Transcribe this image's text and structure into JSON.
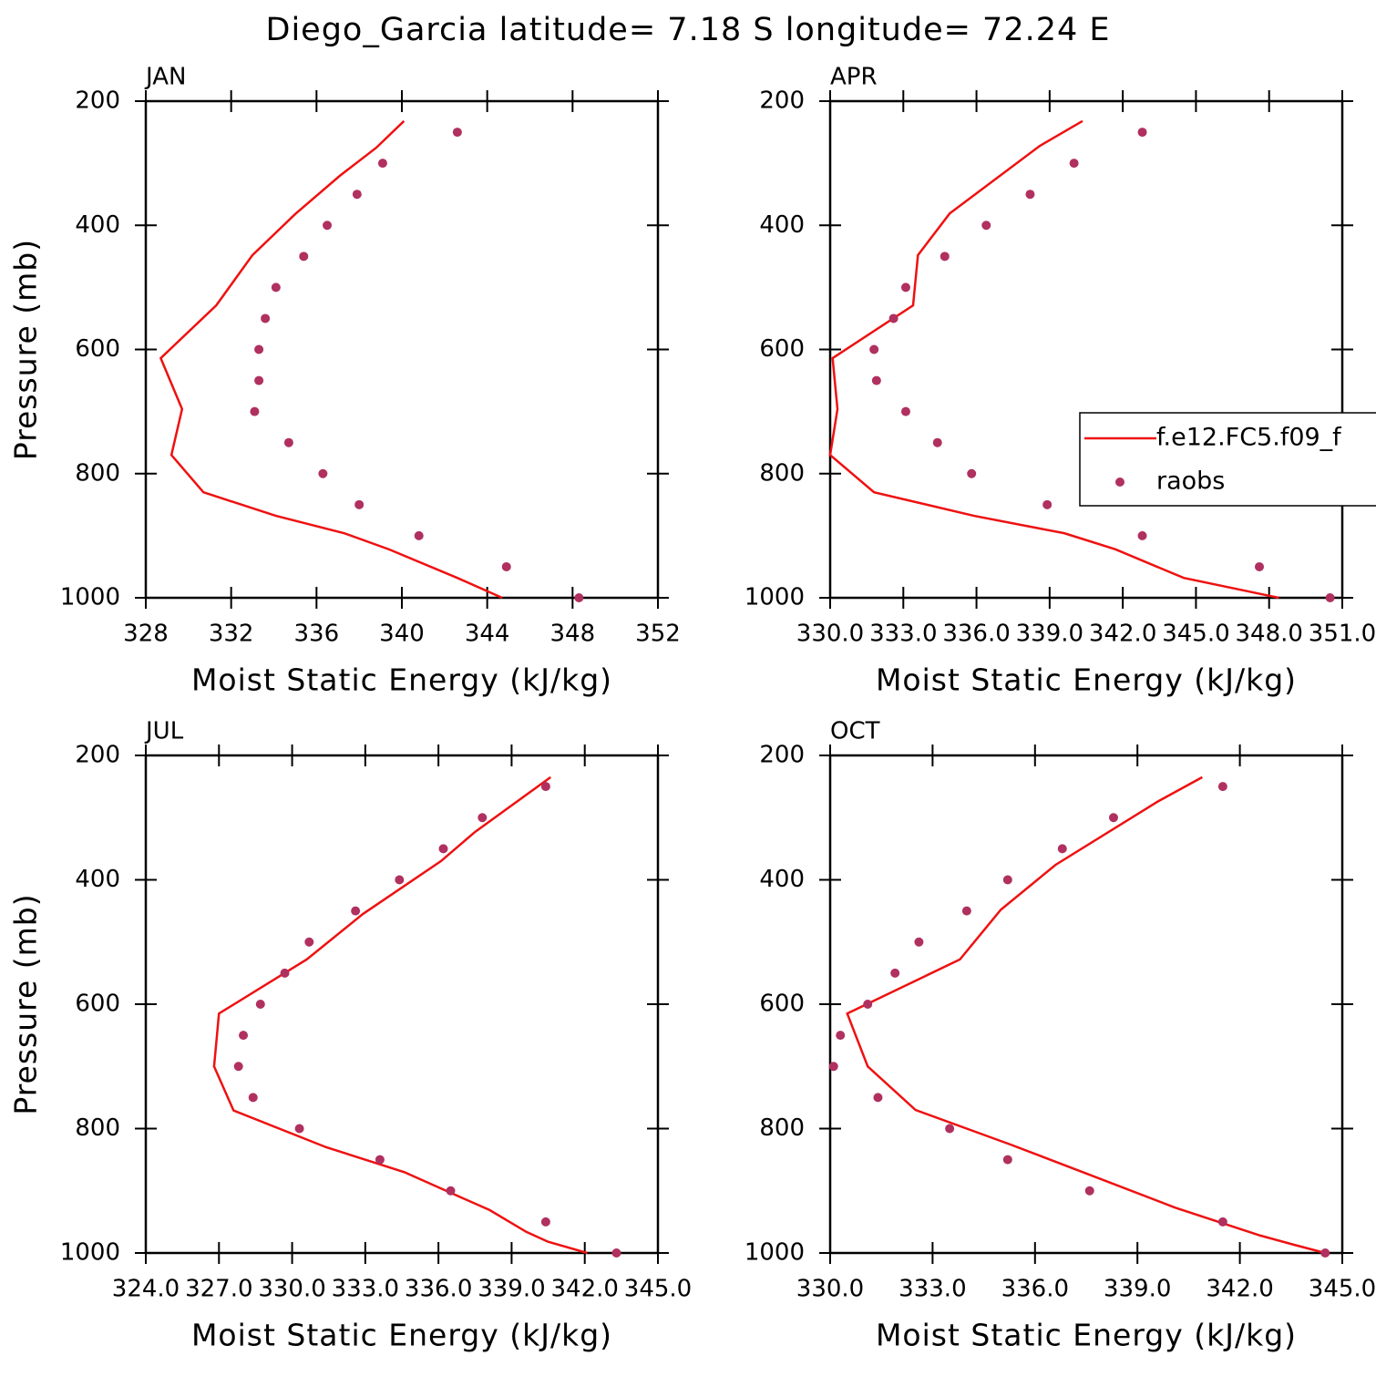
{
  "title": "Diego_Garcia  latitude= 7.18 S longitude= 72.24 E",
  "chart_data": [
    {
      "type": "line-scatter",
      "label": "JAN",
      "xlabel": "Moist Static Energy (kJ/kg)",
      "ylabel": "Pressure (mb)",
      "xlim": [
        328,
        352
      ],
      "xticks": [
        328,
        332,
        336,
        340,
        344,
        348,
        352
      ],
      "ylim": [
        1000,
        200
      ],
      "yticks": [
        200,
        400,
        600,
        800,
        1000
      ],
      "series": [
        {
          "kind": "line",
          "color": "#ee1111",
          "x": [
            340.1,
            338.8,
            337.1,
            335.0,
            333.0,
            331.3,
            328.7,
            329.7,
            329.2,
            330.7,
            334.1,
            337.3,
            339.4,
            342.6,
            344.7
          ],
          "y": [
            232,
            275,
            320,
            382,
            448,
            529,
            614,
            696,
            770,
            830,
            868,
            896,
            922,
            968,
            1000
          ]
        },
        {
          "kind": "scatter",
          "color": "#b03060",
          "x": [
            342.6,
            339.1,
            337.9,
            336.5,
            335.4,
            334.1,
            333.6,
            333.3,
            333.3,
            333.1,
            334.7,
            336.3,
            338.0,
            340.8,
            344.9,
            348.3
          ],
          "y": [
            250,
            300,
            350,
            400,
            450,
            500,
            550,
            600,
            650,
            700,
            750,
            800,
            850,
            900,
            950,
            1000
          ]
        }
      ]
    },
    {
      "type": "line-scatter",
      "label": "APR",
      "xlabel": "Moist Static Energy (kJ/kg)",
      "legend": "right",
      "xlim": [
        330,
        351
      ],
      "xticks": [
        {
          "value": 330,
          "label": "330.0"
        },
        {
          "value": 333,
          "label": "333.0"
        },
        {
          "value": 336,
          "label": "336.0"
        },
        {
          "value": 339,
          "label": "339.0"
        },
        {
          "value": 342,
          "label": "342.0"
        },
        {
          "value": 345,
          "label": "345.0"
        },
        {
          "value": 348,
          "label": "348.0"
        },
        {
          "value": 351,
          "label": "351.0"
        }
      ],
      "ylim": [
        1000,
        200
      ],
      "yticks": [
        200,
        400,
        600,
        800,
        1000
      ],
      "series": [
        {
          "kind": "line",
          "name": "f.e12.FC5.f09_f",
          "color": "#ee1111",
          "x": [
            340.35,
            338.6,
            334.9,
            333.6,
            333.4,
            330.1,
            330.3,
            330.0,
            331.8,
            335.9,
            339.6,
            341.7,
            344.5,
            348.4
          ],
          "y": [
            232,
            272,
            381,
            448,
            529,
            614,
            696,
            770,
            830,
            868,
            896,
            922,
            968,
            1000
          ]
        },
        {
          "kind": "scatter",
          "name": "raobs",
          "color": "#b03060",
          "x": [
            342.8,
            340.0,
            338.2,
            336.4,
            334.7,
            333.1,
            332.6,
            331.8,
            331.9,
            333.1,
            334.4,
            335.8,
            338.9,
            342.8,
            347.6,
            350.5
          ],
          "y": [
            250,
            300,
            350,
            400,
            450,
            500,
            550,
            600,
            650,
            700,
            750,
            800,
            850,
            900,
            950,
            1000
          ]
        }
      ]
    },
    {
      "type": "line-scatter",
      "label": "JUL",
      "xlabel": "Moist Static Energy (kJ/kg)",
      "ylabel": "Pressure (mb)",
      "xlim": [
        324,
        345
      ],
      "xticks": [
        {
          "value": 324,
          "label": "324.0"
        },
        {
          "value": 327,
          "label": "327.0"
        },
        {
          "value": 330,
          "label": "330.0"
        },
        {
          "value": 333,
          "label": "333.0"
        },
        {
          "value": 336,
          "label": "336.0"
        },
        {
          "value": 339,
          "label": "339.0"
        },
        {
          "value": 342,
          "label": "342.0"
        },
        {
          "value": 345,
          "label": "345.0"
        }
      ],
      "ylim": [
        1000,
        200
      ],
      "yticks": [
        200,
        400,
        600,
        800,
        1000
      ],
      "series": [
        {
          "kind": "line",
          "color": "#ee1111",
          "x": [
            340.6,
            337.5,
            336.1,
            332.9,
            330.6,
            327.0,
            326.8,
            327.6,
            331.4,
            334.6,
            336.6,
            338.1,
            339.6,
            340.5,
            342.1
          ],
          "y": [
            235,
            323,
            370,
            455,
            528,
            615,
            700,
            771,
            830,
            870,
            905,
            931,
            966,
            982,
            1000
          ]
        },
        {
          "kind": "scatter",
          "color": "#b03060",
          "x": [
            340.4,
            337.8,
            336.2,
            334.4,
            332.6,
            330.7,
            329.7,
            328.7,
            328.0,
            327.8,
            328.4,
            330.3,
            333.6,
            336.5,
            340.4,
            343.3
          ],
          "y": [
            250,
            300,
            350,
            400,
            450,
            500,
            550,
            600,
            650,
            700,
            750,
            800,
            850,
            900,
            950,
            1000
          ]
        }
      ]
    },
    {
      "type": "line-scatter",
      "label": "OCT",
      "xlabel": "Moist Static Energy (kJ/kg)",
      "xlim": [
        330,
        345
      ],
      "xticks": [
        {
          "value": 330,
          "label": "330.0"
        },
        {
          "value": 333,
          "label": "333.0"
        },
        {
          "value": 336,
          "label": "336.0"
        },
        {
          "value": 339,
          "label": "339.0"
        },
        {
          "value": 342,
          "label": "342.0"
        },
        {
          "value": 345,
          "label": "345.0"
        }
      ],
      "ylim": [
        1000,
        200
      ],
      "yticks": [
        200,
        400,
        600,
        800,
        1000
      ],
      "series": [
        {
          "kind": "line",
          "color": "#ee1111",
          "x": [
            340.9,
            339.6,
            336.6,
            335.0,
            333.8,
            330.5,
            331.1,
            332.5,
            335.3,
            337.4,
            340.1,
            342.6,
            343.6,
            344.5
          ],
          "y": [
            235,
            274,
            376,
            448,
            528,
            615,
            700,
            770,
            826,
            870,
            927,
            972,
            987,
            1000
          ]
        },
        {
          "kind": "scatter",
          "color": "#b03060",
          "x": [
            341.5,
            338.3,
            336.8,
            335.2,
            334.0,
            332.6,
            331.9,
            331.1,
            330.3,
            330.1,
            331.4,
            333.5,
            335.2,
            337.6,
            341.5,
            344.5
          ],
          "y": [
            250,
            300,
            350,
            400,
            450,
            500,
            550,
            600,
            650,
            700,
            750,
            800,
            850,
            900,
            950,
            1000
          ]
        }
      ]
    }
  ]
}
